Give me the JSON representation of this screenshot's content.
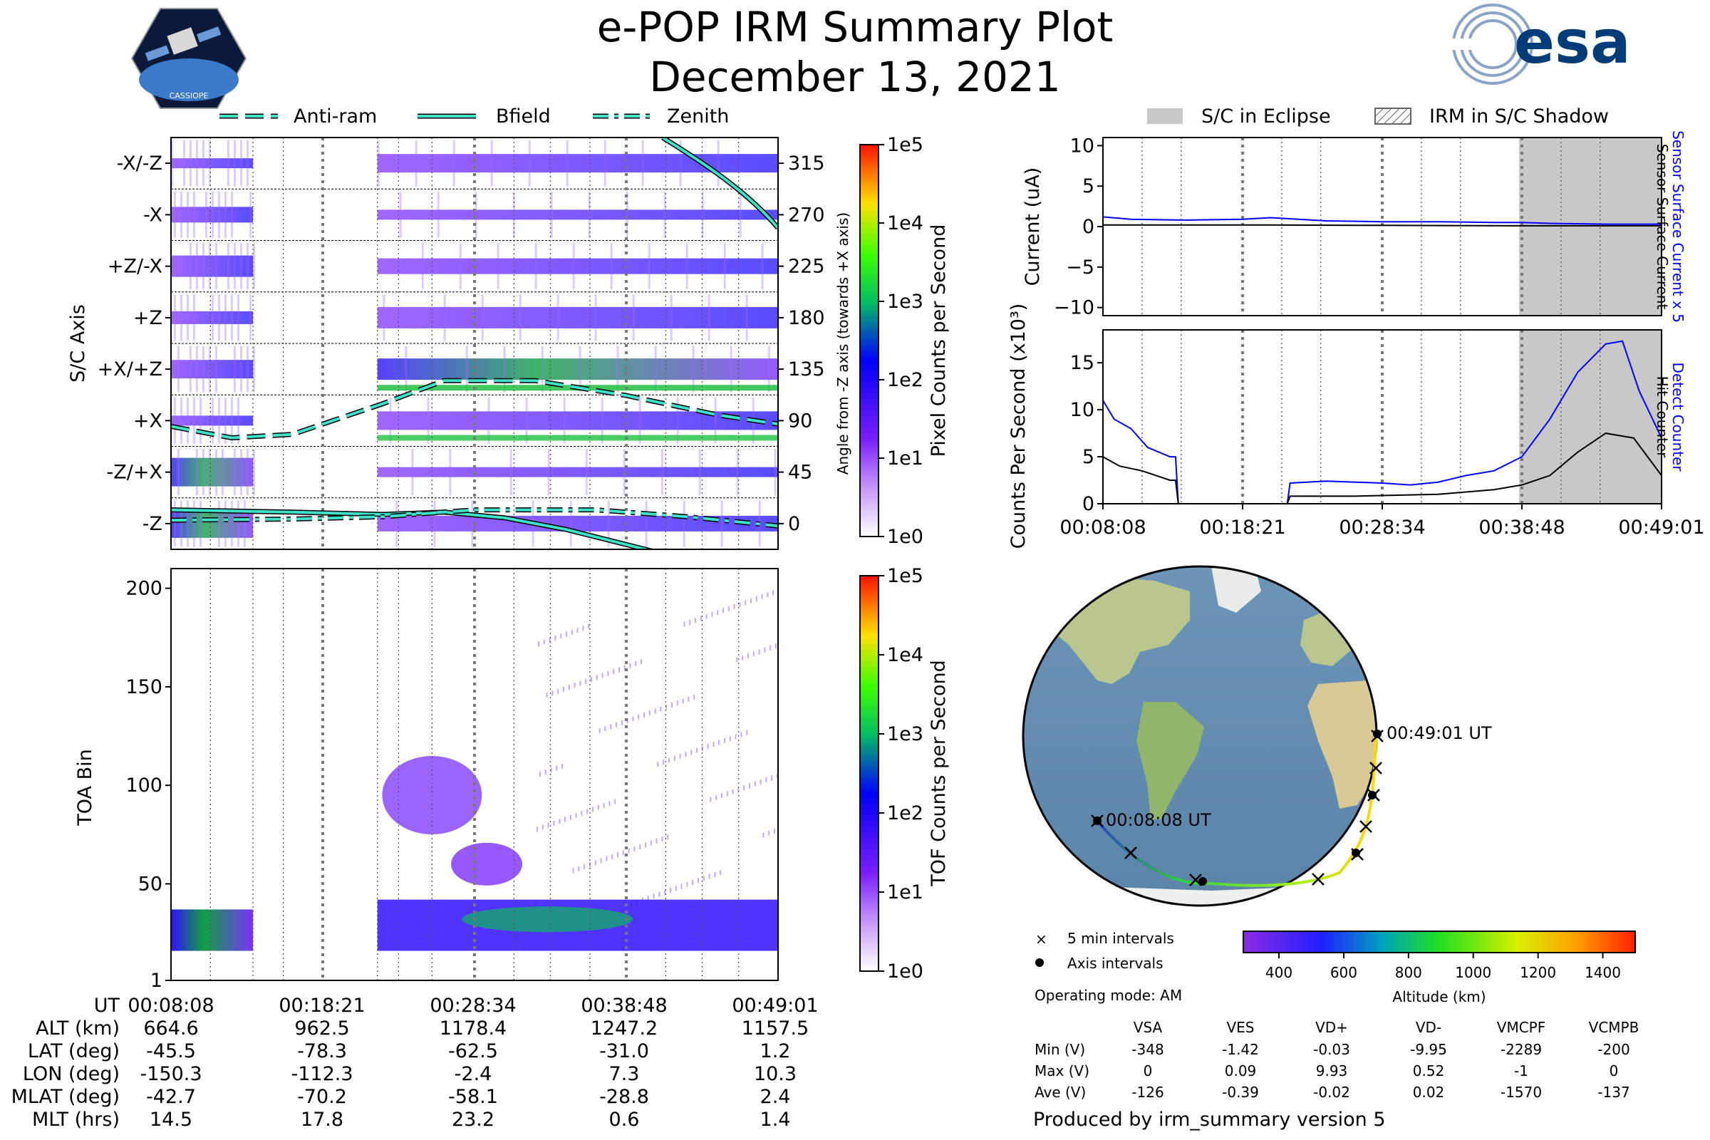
{
  "header": {
    "title": "e-POP IRM Summary Plot",
    "date": "December 13, 2021",
    "logo_left_text": "CASSIOPE",
    "logo_right_text": "esa"
  },
  "legend_left": [
    {
      "label": "Anti-ram",
      "style": "dashed"
    },
    {
      "label": "Bfield",
      "style": "solid"
    },
    {
      "label": "Zenith",
      "style": "dashdot"
    }
  ],
  "legend_right": [
    {
      "label": "S/C in Eclipse",
      "style": "grey"
    },
    {
      "label": "IRM in S/C Shadow",
      "style": "hatch"
    }
  ],
  "time_ticks": [
    "00:08:08",
    "00:18:21",
    "00:28:34",
    "00:38:48",
    "00:49:01"
  ],
  "colors": {
    "blue": "#0000ff",
    "cyan": "#3ee0c8",
    "eclipse": "#c8c8c8",
    "black": "#000000"
  },
  "chart_data": [
    {
      "id": "pixel-counts",
      "type": "heatmap",
      "ylabel": "S/C Axis",
      "yticks": [
        "-X/-Z",
        "-X",
        "+Z/-X",
        "+Z",
        "+X/+Z",
        "+X",
        "-Z/+X",
        "-Z"
      ],
      "y2label": "Angle from -Z axis (towards +X axis)",
      "y2ticks": [
        "315",
        "270",
        "225",
        "180",
        "135",
        "90",
        "45",
        "0"
      ],
      "colorbar_label": "Pixel Counts per Second",
      "colorbar_ticks": [
        "1e5",
        "1e4",
        "1e3",
        "1e2",
        "1e1",
        "1e0"
      ],
      "series": [
        {
          "name": "Anti-ram",
          "x_frac": [
            0,
            0.1,
            0.2,
            0.35,
            0.45,
            0.6,
            0.75,
            0.9,
            1.0
          ],
          "y": [
            85,
            75,
            78,
            105,
            125,
            125,
            112,
            95,
            87
          ]
        },
        {
          "name": "Bfield",
          "x_frac": [
            0,
            0.2,
            0.35,
            0.45,
            0.55,
            0.65,
            0.8
          ],
          "y": [
            12,
            10,
            8,
            10,
            5,
            -5,
            -25
          ]
        },
        {
          "name": "Zenith",
          "x_frac": [
            0,
            0.2,
            0.35,
            0.5,
            0.7,
            0.85,
            1.0
          ],
          "y": [
            3,
            4,
            6,
            12,
            12,
            6,
            -2
          ]
        }
      ]
    },
    {
      "id": "tof-counts",
      "type": "heatmap",
      "ylabel": "TOA Bin",
      "yticks": [
        "200",
        "150",
        "100",
        "50",
        "1"
      ],
      "ylim": [
        1,
        210
      ],
      "colorbar_label": "TOF Counts per Second",
      "colorbar_ticks": [
        "1e5",
        "1e4",
        "1e3",
        "1e2",
        "1e1",
        "1e0"
      ]
    },
    {
      "id": "sensor-current",
      "type": "line",
      "ylabel": "Current (uA)",
      "yticks": [
        "10",
        "5",
        "0",
        "−5",
        "−10"
      ],
      "ylim": [
        -11,
        11
      ],
      "right_label_1": "Sensor Surface Current x 5",
      "right_label_2": "Sensor Surface Current",
      "series": [
        {
          "name": "Sensor Surface Current x 5",
          "x_frac": [
            0,
            0.05,
            0.15,
            0.25,
            0.3,
            0.4,
            0.5,
            0.6,
            0.7,
            0.75,
            0.8,
            0.9,
            1.0
          ],
          "y": [
            1.2,
            0.9,
            0.8,
            0.9,
            1.1,
            0.7,
            0.6,
            0.6,
            0.5,
            0.5,
            0.4,
            0.3,
            0.3
          ]
        },
        {
          "name": "Sensor Surface Current",
          "x_frac": [
            0,
            0.25,
            0.5,
            0.75,
            1.0
          ],
          "y": [
            0.2,
            0.2,
            0.15,
            0.1,
            0.1
          ]
        }
      ]
    },
    {
      "id": "counts-per-second",
      "type": "line",
      "ylabel": "Counts Per Second (x10³)",
      "yticks": [
        "15",
        "10",
        "5",
        "0"
      ],
      "ylim": [
        0,
        18.5
      ],
      "right_label_1": "Detect Counter",
      "right_label_2": "Hit Counter",
      "series": [
        {
          "name": "Detect Counter",
          "x_frac": [
            0,
            0.02,
            0.05,
            0.08,
            0.12,
            0.13,
            0.135,
            0.2,
            0.3,
            0.33,
            0.335,
            0.4,
            0.5,
            0.55,
            0.6,
            0.65,
            0.7,
            0.75,
            0.8,
            0.85,
            0.9,
            0.93,
            0.96,
            1.0
          ],
          "y": [
            11,
            9,
            8,
            6,
            5,
            5,
            0,
            0,
            0,
            0,
            2.2,
            2.4,
            2.2,
            2,
            2.3,
            3,
            3.5,
            5,
            9,
            14,
            17,
            17.3,
            12,
            7
          ]
        },
        {
          "name": "Hit Counter",
          "x_frac": [
            0,
            0.03,
            0.07,
            0.12,
            0.13,
            0.135,
            0.2,
            0.3,
            0.33,
            0.335,
            0.45,
            0.6,
            0.7,
            0.75,
            0.8,
            0.85,
            0.9,
            0.95,
            1.0
          ],
          "y": [
            5,
            4,
            3.5,
            2.5,
            2.5,
            0,
            0,
            0,
            0,
            0.8,
            0.8,
            1,
            1.5,
            2,
            3,
            5.5,
            7.5,
            7,
            3
          ]
        }
      ]
    }
  ],
  "map": {
    "start_label": "00:08:08 UT",
    "end_label": "00:49:01 UT",
    "legend_cross": "5 min intervals",
    "legend_dot": "Axis intervals",
    "colorbar_ticks": [
      "400",
      "800",
      "1000",
      "1200",
      "1400"
    ],
    "colorbar_label": "Altitude (km)",
    "note_600": "600"
  },
  "orbit_table": {
    "rows": [
      {
        "label": "UT",
        "values": [
          "00:08:08",
          "00:18:21",
          "00:28:34",
          "00:38:48",
          "00:49:01"
        ]
      },
      {
        "label": "ALT (km)",
        "values": [
          "664.6",
          "962.5",
          "1178.4",
          "1247.2",
          "1157.5"
        ]
      },
      {
        "label": "LAT (deg)",
        "values": [
          "-45.5",
          "-78.3",
          "-62.5",
          "-31.0",
          "1.2"
        ]
      },
      {
        "label": "LON (deg)",
        "values": [
          "-150.3",
          "-112.3",
          "-2.4",
          "7.3",
          "10.3"
        ]
      },
      {
        "label": "MLAT (deg)",
        "values": [
          "-42.7",
          "-70.2",
          "-58.1",
          "-28.8",
          "2.4"
        ]
      },
      {
        "label": "MLT (hrs)",
        "values": [
          "14.5",
          "17.8",
          "23.2",
          "0.6",
          "1.4"
        ]
      }
    ]
  },
  "operating_mode": "Operating mode: AM",
  "voltage_table": {
    "headers": [
      "VSA",
      "VES",
      "VD+",
      "VD-",
      "VMCPF",
      "VCMPB"
    ],
    "rows": [
      {
        "label": "Min (V)",
        "values": [
          "-348",
          "-1.42",
          "-0.03",
          "-9.95",
          "-2289",
          "-200"
        ]
      },
      {
        "label": "Max (V)",
        "values": [
          "0",
          "0.09",
          "9.93",
          "0.52",
          "-1",
          "0"
        ]
      },
      {
        "label": "Ave (V)",
        "values": [
          "-126",
          "-0.39",
          "-0.02",
          "0.02",
          "-1570",
          "-137"
        ]
      }
    ]
  },
  "footer": "Produced by irm_summary version 5"
}
